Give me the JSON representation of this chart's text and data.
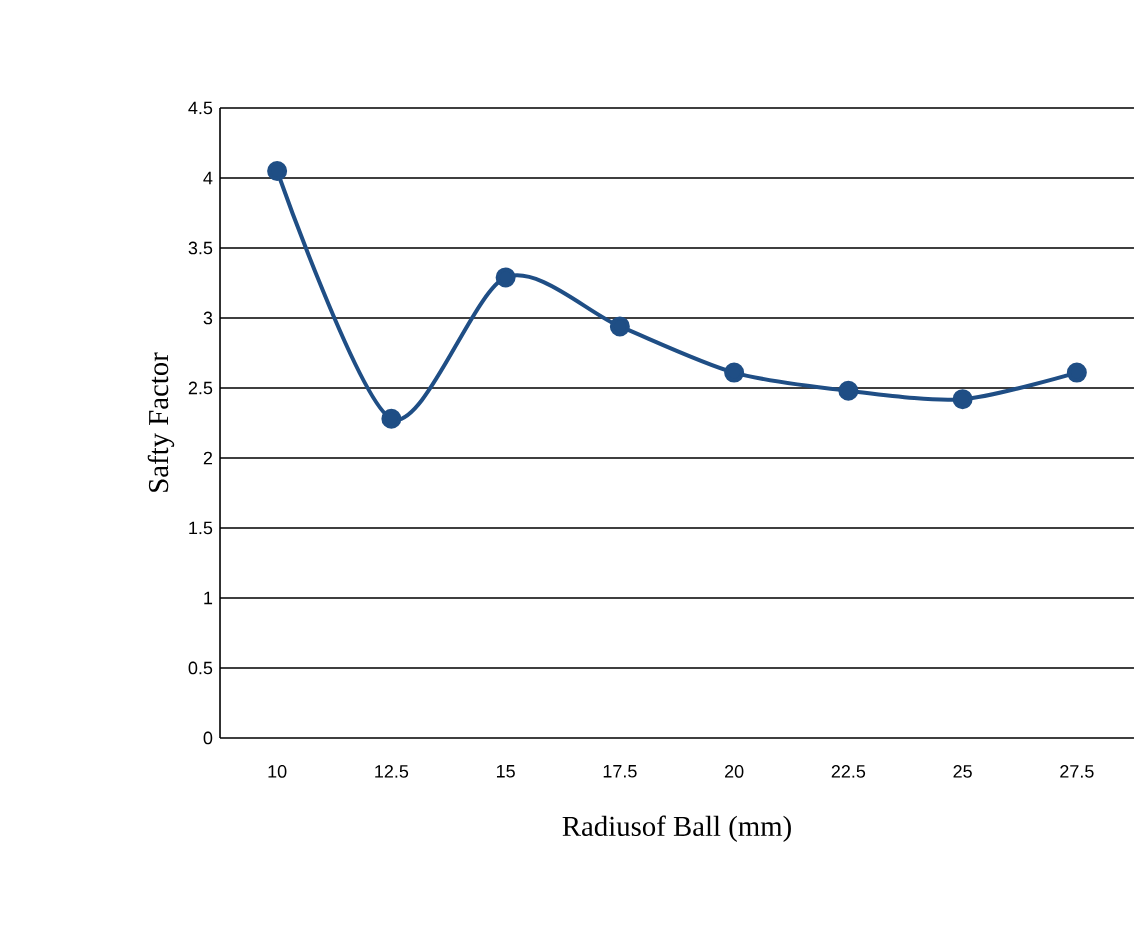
{
  "chart_data": {
    "type": "line",
    "xlabel": "Radiusof Ball (mm)",
    "ylabel": "Safty Factor",
    "categories": [
      "10",
      "12.5",
      "15",
      "17.5",
      "20",
      "22.5",
      "25",
      "27.5"
    ],
    "series": [
      {
        "color": "#1f4e85",
        "values": [
          4.05,
          2.28,
          3.29,
          2.94,
          2.61,
          2.48,
          2.42,
          2.61
        ]
      }
    ],
    "ylim": [
      0,
      4.5
    ],
    "yticks": [
      0,
      0.5,
      1,
      1.5,
      2,
      2.5,
      3,
      3.5,
      4,
      4.5
    ],
    "grid": "y",
    "marker": "circle",
    "line_style": "solid"
  }
}
